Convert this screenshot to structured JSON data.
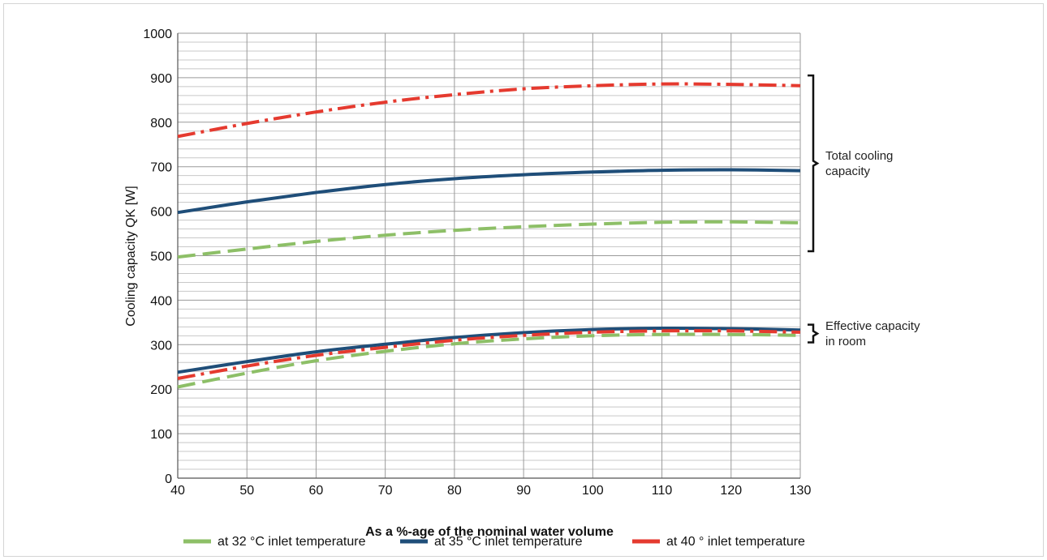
{
  "chart_data": {
    "type": "line",
    "xlabel": "As a %-age of the nominal water volume",
    "ylabel": "Cooling capacity QK    [W]",
    "xlim": [
      40,
      130
    ],
    "ylim": [
      0,
      1000
    ],
    "x_ticks": [
      "40",
      "50",
      "60",
      "70",
      "80",
      "90",
      "100",
      "110",
      "120",
      "130"
    ],
    "y_ticks": [
      "0",
      "100",
      "200",
      "300",
      "400",
      "500",
      "600",
      "700",
      "800",
      "900",
      "1000"
    ],
    "grid": true,
    "legend_position": "bottom",
    "x": [
      40,
      50,
      60,
      70,
      80,
      90,
      100,
      110,
      120,
      130
    ],
    "series": [
      {
        "name": "at 32 °C inlet temperature",
        "group": "total",
        "color": "#8dbf67",
        "style": "dashed",
        "values": [
          497,
          515,
          532,
          546,
          557,
          565,
          571,
          575,
          576,
          574
        ]
      },
      {
        "name": "at 35 °C inlet temperature",
        "group": "total",
        "color": "#1f4e79",
        "style": "solid",
        "values": [
          597,
          621,
          642,
          660,
          673,
          682,
          688,
          692,
          693,
          691
        ]
      },
      {
        "name": "at 40 ° inlet temperature",
        "group": "total",
        "color": "#e53a2f",
        "style": "dashdot",
        "values": [
          768,
          797,
          823,
          845,
          862,
          875,
          882,
          886,
          885,
          882
        ]
      },
      {
        "name": "at 32 °C inlet temperature",
        "group": "effective",
        "color": "#8dbf67",
        "style": "dashed",
        "values": [
          205,
          236,
          264,
          285,
          302,
          313,
          320,
          323,
          323,
          321
        ]
      },
      {
        "name": "at 35 °C inlet temperature",
        "group": "effective",
        "color": "#1f4e79",
        "style": "solid",
        "values": [
          238,
          262,
          284,
          301,
          316,
          327,
          334,
          337,
          336,
          333
        ]
      },
      {
        "name": "at 40 ° inlet temperature",
        "group": "effective",
        "color": "#e53a2f",
        "style": "dashdot",
        "values": [
          224,
          252,
          276,
          294,
          310,
          321,
          328,
          331,
          331,
          328
        ]
      }
    ],
    "annotations": [
      {
        "lines": [
          "Total cooling",
          "capacity"
        ],
        "range": [
          510,
          905
        ]
      },
      {
        "lines": [
          "Effective capacity",
          "in room"
        ],
        "range": [
          305,
          345
        ]
      }
    ]
  },
  "legend": [
    {
      "label": "at 32 °C inlet temperature",
      "color": "#8dbf67"
    },
    {
      "label": "at 35 °C inlet temperature",
      "color": "#1f4e79"
    },
    {
      "label": "at 40 ° inlet temperature",
      "color": "#e53a2f"
    }
  ]
}
